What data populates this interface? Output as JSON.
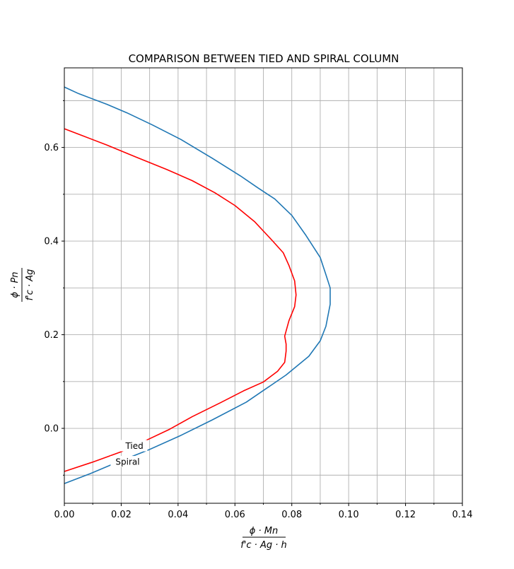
{
  "chart_data": {
    "type": "line",
    "title": "COMPARISON BETWEEN TIED AND SPIRAL COLUMN",
    "xlim": [
      0.0,
      0.14
    ],
    "ylim": [
      -0.16,
      0.77
    ],
    "grid": true,
    "x_major_ticks": [
      0.0,
      0.02,
      0.04,
      0.06,
      0.08,
      0.1,
      0.12,
      0.14
    ],
    "x_tick_labels": [
      "0.00",
      "0.02",
      "0.04",
      "0.06",
      "0.08",
      "0.10",
      "0.12",
      "0.14"
    ],
    "y_major_ticks": [
      0.0,
      0.2,
      0.4,
      0.6
    ],
    "y_tick_labels": [
      "0.0",
      "0.2",
      "0.4",
      "0.6"
    ],
    "x_grid": [
      0.0,
      0.01,
      0.02,
      0.03,
      0.04,
      0.05,
      0.06,
      0.07,
      0.08,
      0.09,
      0.1,
      0.11,
      0.12,
      0.13,
      0.14
    ],
    "y_grid": [
      -0.1,
      0.0,
      0.1,
      0.2,
      0.3,
      0.4,
      0.5,
      0.6,
      0.7
    ],
    "xlabel": {
      "numerator": "ϕ · Mn",
      "denominator": "f'c · Ag · h"
    },
    "ylabel": {
      "numerator": "ϕ · Pn",
      "denominator": "f'c · Ag"
    },
    "series": [
      {
        "name": "Tied",
        "color": "#ff0000",
        "label_position": [
          0.0215,
          -0.037
        ],
        "points": [
          [
            0.0,
            -0.092
          ],
          [
            0.01,
            -0.072
          ],
          [
            0.02,
            -0.05
          ],
          [
            0.029,
            -0.025
          ],
          [
            0.037,
            -0.002
          ],
          [
            0.045,
            0.025
          ],
          [
            0.055,
            0.055
          ],
          [
            0.063,
            0.08
          ],
          [
            0.07,
            0.099
          ],
          [
            0.075,
            0.122
          ],
          [
            0.0775,
            0.141
          ],
          [
            0.078,
            0.165
          ],
          [
            0.078,
            0.18
          ],
          [
            0.0775,
            0.197
          ],
          [
            0.079,
            0.23
          ],
          [
            0.081,
            0.26
          ],
          [
            0.0815,
            0.285
          ],
          [
            0.081,
            0.315
          ],
          [
            0.079,
            0.348
          ],
          [
            0.077,
            0.375
          ],
          [
            0.073,
            0.402
          ],
          [
            0.067,
            0.441
          ],
          [
            0.06,
            0.476
          ],
          [
            0.053,
            0.503
          ],
          [
            0.045,
            0.529
          ],
          [
            0.036,
            0.553
          ],
          [
            0.025,
            0.58
          ],
          [
            0.015,
            0.605
          ],
          [
            0.006,
            0.626
          ],
          [
            0.0,
            0.64
          ]
        ]
      },
      {
        "name": "Spiral",
        "color": "#1f77b4",
        "label_position": [
          0.018,
          -0.071
        ],
        "points": [
          [
            0.0,
            -0.118
          ],
          [
            0.009,
            -0.097
          ],
          [
            0.018,
            -0.074
          ],
          [
            0.03,
            -0.045
          ],
          [
            0.041,
            -0.015
          ],
          [
            0.052,
            0.018
          ],
          [
            0.064,
            0.056
          ],
          [
            0.071,
            0.085
          ],
          [
            0.078,
            0.114
          ],
          [
            0.086,
            0.154
          ],
          [
            0.09,
            0.187
          ],
          [
            0.092,
            0.218
          ],
          [
            0.0935,
            0.265
          ],
          [
            0.0935,
            0.3
          ],
          [
            0.0918,
            0.332
          ],
          [
            0.09,
            0.365
          ],
          [
            0.085,
            0.412
          ],
          [
            0.08,
            0.455
          ],
          [
            0.074,
            0.49
          ],
          [
            0.068,
            0.514
          ],
          [
            0.062,
            0.539
          ],
          [
            0.052,
            0.577
          ],
          [
            0.041,
            0.617
          ],
          [
            0.031,
            0.648
          ],
          [
            0.022,
            0.674
          ],
          [
            0.015,
            0.692
          ],
          [
            0.005,
            0.715
          ],
          [
            0.0,
            0.729
          ]
        ]
      }
    ]
  }
}
